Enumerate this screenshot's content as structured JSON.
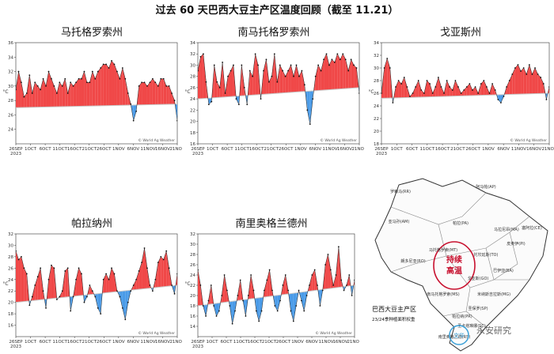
{
  "page": {
    "title": "过去 60 天巴西大豆主产区温度回顾（截至 11.21）"
  },
  "chart_data": [
    {
      "type": "area",
      "title": "马托格罗索州",
      "ylabel": "°C",
      "ylim": [
        22,
        36
      ],
      "yticks": [
        24,
        26,
        28,
        30,
        32,
        34,
        36
      ],
      "x_ticks": [
        "26SEP\n2023",
        "1OCT",
        "6OCT",
        "11OCT",
        "16OCT",
        "21OCT",
        "26OCT",
        "1NOV",
        "6NOV",
        "11NOV",
        "16NOV",
        "21NOV"
      ],
      "credit": "© World Ag Weather",
      "normal": [
        27.0,
        27.5
      ],
      "values": [
        29.5,
        32,
        30.5,
        28.5,
        29,
        31.5,
        29,
        30.5,
        30,
        29.5,
        31,
        30,
        32,
        31,
        30,
        29,
        30.5,
        30,
        31,
        29,
        30.5,
        30,
        30.5,
        31,
        31,
        32,
        30.5,
        30.5,
        32,
        31,
        32,
        32.5,
        33,
        33,
        32.5,
        33.5,
        33,
        32,
        31,
        32.5,
        31,
        29,
        27.5,
        25.2,
        26.5,
        30,
        30.5,
        30.5,
        30,
        30.5,
        31,
        30.5,
        30,
        31,
        31,
        30,
        30,
        29,
        28,
        25.2
      ]
    },
    {
      "type": "area",
      "title": "南马托格罗索州",
      "ylabel": "°C",
      "ylim": [
        16,
        34
      ],
      "yticks": [
        16,
        18,
        20,
        22,
        24,
        26,
        28,
        30,
        32,
        34
      ],
      "x_ticks": [
        "26SEP\n2023",
        "1OCT",
        "6OCT",
        "11OCT",
        "16OCT",
        "21OCT",
        "26OCT",
        "1NOV",
        "6NOV",
        "11NOV",
        "16NOV",
        "21NOV"
      ],
      "credit": "© World Ag Weather",
      "normal": [
        24.0,
        26.0
      ],
      "values": [
        29,
        31.5,
        32,
        27,
        23,
        23.5,
        30,
        27,
        26,
        30.5,
        25,
        28,
        29,
        30,
        24,
        23,
        30,
        26,
        23,
        29,
        28,
        32,
        30,
        24,
        29,
        31,
        27,
        28,
        32,
        27,
        30,
        29,
        28,
        29,
        30,
        28,
        30,
        28,
        29,
        26.5,
        22,
        19.5,
        24,
        28,
        30,
        29,
        31,
        32,
        30,
        31,
        30.5,
        32,
        31,
        32,
        31,
        29,
        31,
        30,
        29.5,
        25
      ]
    },
    {
      "type": "area",
      "title": "戈亚斯州",
      "ylabel": "°C",
      "ylim": [
        18,
        34
      ],
      "yticks": [
        18,
        20,
        22,
        24,
        26,
        28,
        30,
        32,
        34
      ],
      "x_ticks": [
        "26SEP\n2023",
        "1OCT",
        "6OCT",
        "11OCT",
        "16OCT",
        "21OCT",
        "26OCT",
        "1NOV",
        "6NOV",
        "11NOV",
        "16NOV",
        "21NOV"
      ],
      "credit": "© World Ag Weather",
      "normal": [
        25.2,
        26.0
      ],
      "values": [
        26,
        30,
        31.5,
        30,
        24.5,
        27,
        28,
        27.5,
        28.5,
        27,
        25.5,
        26,
        27,
        28,
        26.5,
        26,
        28,
        27.5,
        26,
        27,
        28.5,
        27,
        26,
        28,
        27,
        26.5,
        28,
        27,
        26,
        26.5,
        27,
        27.5,
        26.5,
        27,
        26,
        27.5,
        28,
        27,
        26,
        27.5,
        26.5,
        25,
        24.5,
        25.5,
        27,
        28,
        29,
        30,
        30.5,
        29.5,
        30,
        29,
        30.5,
        29,
        30,
        29,
        28.5,
        27.5,
        25,
        27
      ]
    },
    {
      "type": "area",
      "title": "帕拉纳州",
      "ylabel": "°C",
      "ylim": [
        14,
        32
      ],
      "yticks": [
        16,
        18,
        20,
        22,
        24,
        26,
        28,
        30,
        32
      ],
      "x_ticks": [
        "26SEP\n2023",
        "1OCT",
        "6OCT",
        "11OCT",
        "16OCT",
        "21OCT",
        "26OCT",
        "1NOV",
        "6NOV",
        "11NOV",
        "16NOV",
        "21NOV"
      ],
      "credit": "© World Ag Weather",
      "normal": [
        20.0,
        23.0
      ],
      "values": [
        29,
        27.5,
        28,
        26,
        25,
        19.5,
        21,
        23,
        24.5,
        26,
        22,
        19,
        24,
        26.5,
        26,
        20.5,
        21,
        22,
        25.5,
        26,
        18.5,
        21,
        24,
        26,
        25,
        20,
        21,
        23,
        22,
        21,
        19,
        18,
        24,
        25,
        24,
        26,
        25,
        22,
        21,
        19,
        17,
        20,
        22,
        23,
        24,
        25.5,
        27,
        29.5,
        26,
        23,
        22,
        24,
        27,
        28,
        27.5,
        29,
        26,
        23,
        21.5,
        25
      ]
    },
    {
      "type": "area",
      "title": "南里奥格兰德州",
      "ylabel": "°C",
      "ylim": [
        12,
        32
      ],
      "yticks": [
        14,
        16,
        18,
        20,
        22,
        24,
        26,
        28,
        30,
        32
      ],
      "x_ticks": [
        "26SEP\n2023",
        "1OCT",
        "6OCT",
        "11OCT",
        "16OCT",
        "21OCT",
        "26OCT",
        "1NOV",
        "6NOV",
        "11NOV",
        "16NOV",
        "21NOV"
      ],
      "credit": "© World Ag Weather",
      "normal": [
        18.0,
        22.0
      ],
      "values": [
        25,
        22,
        18,
        16,
        19,
        22,
        18,
        16,
        17,
        20,
        24,
        21,
        18,
        14.5,
        17,
        20,
        23,
        19,
        16,
        20,
        24,
        21,
        17,
        15,
        17,
        21,
        23,
        25,
        21,
        18,
        17,
        19,
        22,
        24,
        21,
        17,
        15,
        18,
        21,
        19,
        17,
        20,
        22,
        24,
        25,
        22,
        18,
        21,
        26,
        28,
        25,
        22,
        24,
        29.5,
        23,
        21,
        22,
        24,
        20,
        23
      ]
    }
  ],
  "map": {
    "title": "巴西大豆主产区",
    "subtitle": "23/24季种植面积权重",
    "highlight_text_1": "持续",
    "highlight_text_2": "高温",
    "regions": [
      {
        "name": "罗赖马(RR)"
      },
      {
        "name": "阿马帕(AP)"
      },
      {
        "name": "亚马孙(AM)"
      },
      {
        "name": "帕拉(PA)"
      },
      {
        "name": "马拉尼昂(MA)"
      },
      {
        "name": "塞阿拉(CE)"
      },
      {
        "name": "皮奥伊(PI)"
      },
      {
        "name": "托坎廷斯(TO)"
      },
      {
        "name": "巴伊亚(BA)"
      },
      {
        "name": "马托格罗索(MT)"
      },
      {
        "name": "戈亚斯(GO)"
      },
      {
        "name": "南马托格罗索(MS)"
      },
      {
        "name": "米纳斯吉拉斯(MG)"
      },
      {
        "name": "圣保罗(SP)"
      },
      {
        "name": "帕拉纳(PR)"
      },
      {
        "name": "圣卡塔琳娜(SC)"
      },
      {
        "name": "南里奥格兰德(RS)"
      },
      {
        "name": "朗多尼亚(RO)"
      }
    ]
  },
  "watermark": {
    "text": "永安研究",
    "sub": "文华"
  },
  "colors": {
    "above": "#f04848",
    "below": "#4a9be8",
    "normal_line": "#c8c8c8"
  }
}
